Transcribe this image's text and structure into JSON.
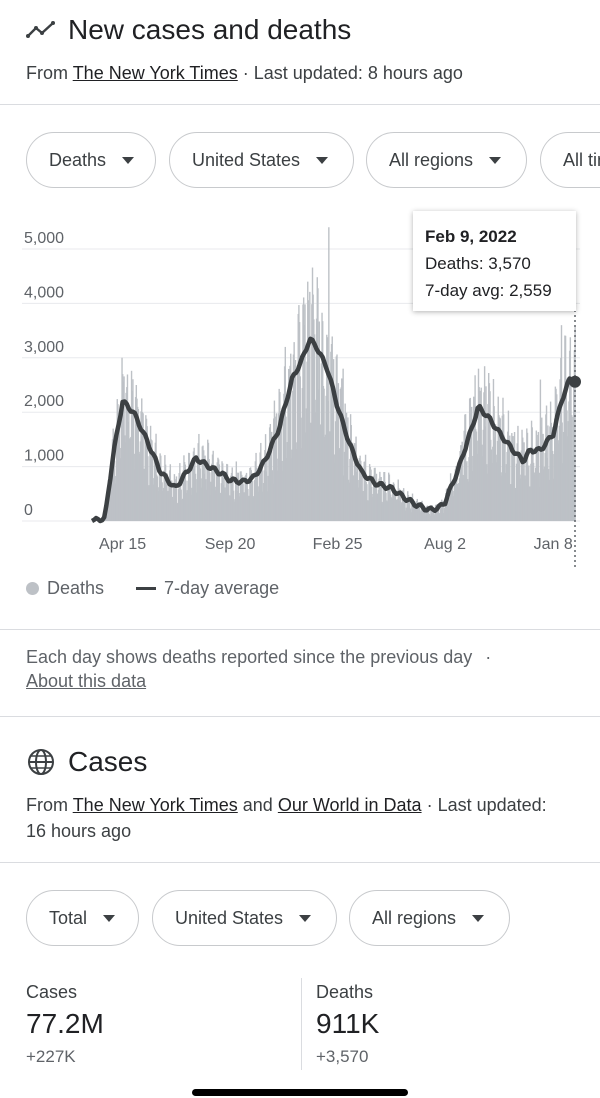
{
  "deaths_section": {
    "title": "New cases and deaths",
    "icon": "trending-icon",
    "source_prefix": "From",
    "source_link": "The New York Times",
    "updated": "· Last updated: 8 hours ago"
  },
  "filters": {
    "metric": "Deaths",
    "country": "United States",
    "region": "All regions",
    "time": "All time"
  },
  "tooltip": {
    "date": "Feb 9, 2022",
    "deaths": "Deaths: 3,570",
    "avg": "7-day avg: 2,559"
  },
  "legend": {
    "deaths": "Deaths",
    "avg": "7-day average"
  },
  "note": {
    "text": "Each day shows deaths reported since the previous day",
    "bullet": "·",
    "link": "About this data"
  },
  "cases_section": {
    "title": "Cases",
    "icon": "globe-icon",
    "source_prefix": "From",
    "source_link1": "The New York Times",
    "and": "and",
    "source_link2": "Our World in Data",
    "updated": "· Last updated:",
    "updated2": "16 hours ago"
  },
  "cases_filters": {
    "metric": "Total",
    "country": "United States",
    "region": "All regions"
  },
  "stats": {
    "cases_label": "Cases",
    "cases_value": "77.2M",
    "cases_delta": "+227K",
    "deaths_label": "Deaths",
    "deaths_value": "911K",
    "deaths_delta": "+3,570"
  },
  "chart_data": {
    "type": "bar",
    "ylim": [
      0,
      5000
    ],
    "yticks": [
      0,
      1000,
      2000,
      3000,
      4000,
      5000
    ],
    "ytick_labels": [
      "0",
      "1,000",
      "2,000",
      "3,000",
      "4,000",
      "5,000"
    ],
    "xtick_labels": [
      "Apr 15",
      "Sep 20",
      "Feb 25",
      "Aug 2",
      "Jan 8"
    ],
    "colors": {
      "bars": "#bdc1c6",
      "avg_line": "#3c4043",
      "grid": "#e8eaed"
    },
    "series": [
      {
        "name": "7-day average",
        "points": [
          [
            "2020-03-01",
            0
          ],
          [
            "2020-03-20",
            50
          ],
          [
            "2020-04-01",
            1200
          ],
          [
            "2020-04-15",
            2200
          ],
          [
            "2020-05-01",
            2000
          ],
          [
            "2020-05-20",
            1500
          ],
          [
            "2020-06-10",
            900
          ],
          [
            "2020-07-01",
            600
          ],
          [
            "2020-07-10",
            750
          ],
          [
            "2020-08-01",
            1150
          ],
          [
            "2020-08-20",
            1000
          ],
          [
            "2020-09-10",
            850
          ],
          [
            "2020-09-20",
            750
          ],
          [
            "2020-10-10",
            720
          ],
          [
            "2020-10-25",
            800
          ],
          [
            "2020-11-10",
            1100
          ],
          [
            "2020-12-01",
            1700
          ],
          [
            "2020-12-20",
            2600
          ],
          [
            "2021-01-05",
            3000
          ],
          [
            "2021-01-15",
            3350
          ],
          [
            "2021-01-25",
            3200
          ],
          [
            "2021-02-10",
            2800
          ],
          [
            "2021-02-25",
            2100
          ],
          [
            "2021-03-15",
            1400
          ],
          [
            "2021-04-01",
            900
          ],
          [
            "2021-04-20",
            700
          ],
          [
            "2021-05-15",
            600
          ],
          [
            "2021-06-01",
            450
          ],
          [
            "2021-06-20",
            300
          ],
          [
            "2021-07-10",
            200
          ],
          [
            "2021-07-25",
            250
          ],
          [
            "2021-08-02",
            350
          ],
          [
            "2021-08-20",
            900
          ],
          [
            "2021-09-10",
            1700
          ],
          [
            "2021-09-20",
            2100
          ],
          [
            "2021-10-05",
            1900
          ],
          [
            "2021-10-25",
            1550
          ],
          [
            "2021-11-10",
            1300
          ],
          [
            "2021-11-25",
            1100
          ],
          [
            "2021-12-05",
            1300
          ],
          [
            "2021-12-20",
            1300
          ],
          [
            "2022-01-08",
            1600
          ],
          [
            "2022-01-20",
            2200
          ],
          [
            "2022-02-01",
            2600
          ],
          [
            "2022-02-09",
            2559
          ]
        ]
      },
      {
        "name": "Deaths",
        "peaks": [
          [
            "2020-04-15",
            2700
          ],
          [
            "2020-05-05",
            2500
          ],
          [
            "2020-08-05",
            1600
          ],
          [
            "2020-12-10",
            3200
          ],
          [
            "2021-01-12",
            4400
          ],
          [
            "2021-02-12",
            5400
          ],
          [
            "2021-03-05",
            2800
          ],
          [
            "2021-09-20",
            2800
          ],
          [
            "2021-12-20",
            2600
          ],
          [
            "2022-01-20",
            3600
          ],
          [
            "2022-02-09",
            3570
          ]
        ]
      }
    ],
    "selected": {
      "date": "2022-02-09",
      "deaths": 3570,
      "avg": 2559
    }
  }
}
